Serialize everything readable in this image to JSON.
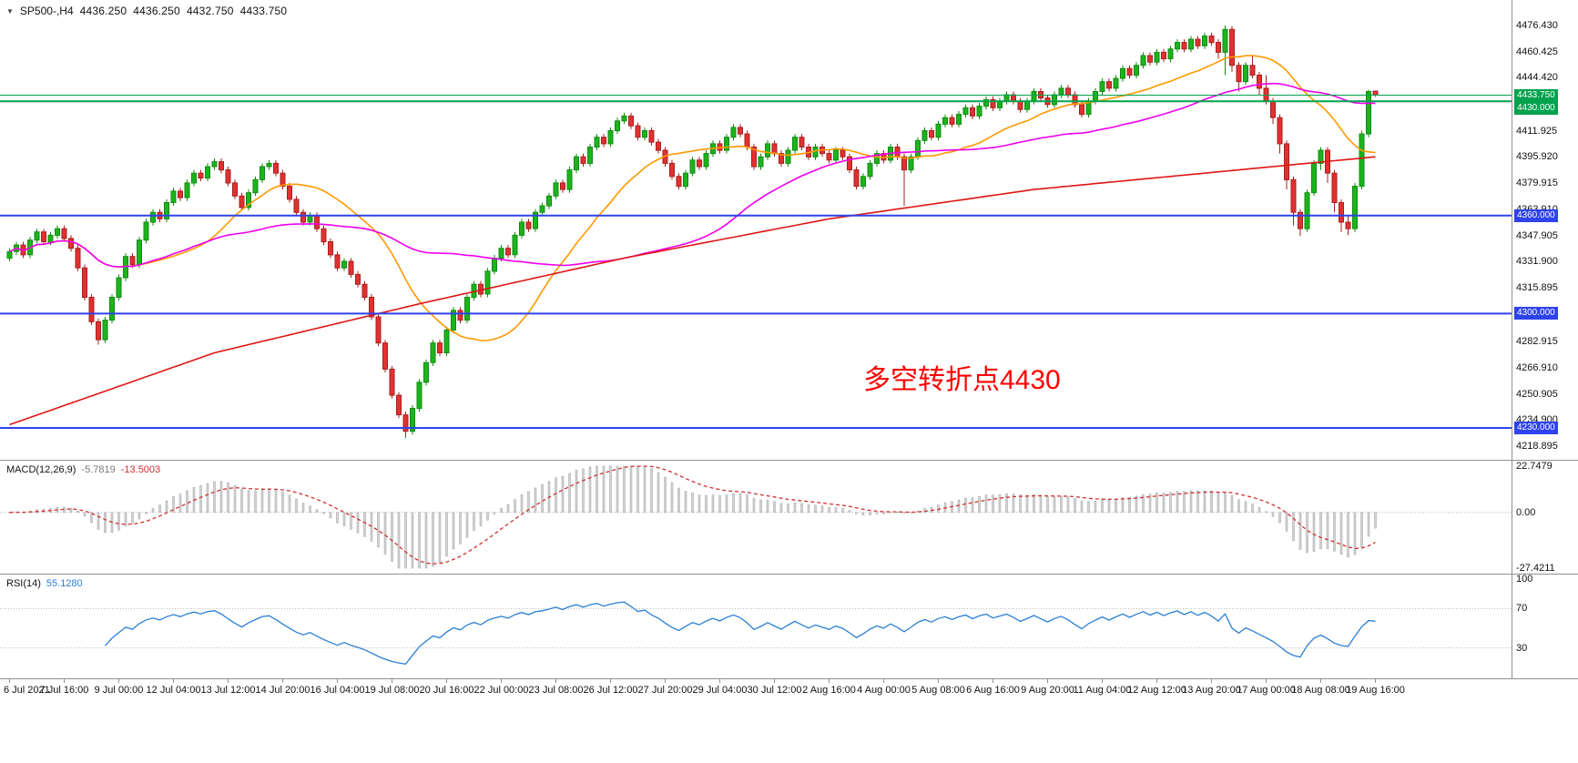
{
  "header": {
    "symbol_period": "SP500-,H4",
    "open": "4436.250",
    "high": "4436.250",
    "low": "4432.750",
    "close": "4433.750"
  },
  "annotation": {
    "text": "多空转折点4430",
    "color": "#ff0000"
  },
  "price_axis": {
    "labels": [
      "4476.430",
      "4460.425",
      "4444.420",
      "4428.415",
      "4411.925",
      "4395.920",
      "4379.915",
      "4363.910",
      "4347.905",
      "4331.900",
      "4315.895",
      "4299.890",
      "4282.915",
      "4266.910",
      "4250.905",
      "4234.900",
      "4218.895"
    ],
    "badges": [
      {
        "text": "4433.750",
        "price": 4433.75,
        "color": "#00a24d"
      },
      {
        "text": "4430.000",
        "price": 4430.0,
        "color": "#00a24d"
      },
      {
        "text": "4360.000",
        "price": 4360.0,
        "color": "#2e43eb"
      },
      {
        "text": "4300.000",
        "price": 4300.0,
        "color": "#2e43eb"
      },
      {
        "text": "4230.000",
        "price": 4230.0,
        "color": "#2e43eb"
      }
    ]
  },
  "hlines": [
    {
      "price": 4433.75,
      "color": "#00a24d",
      "width": 1
    },
    {
      "price": 4430.0,
      "color": "#00a24d",
      "width": 2
    },
    {
      "price": 4360.0,
      "color": "#2e43eb",
      "width": 2
    },
    {
      "price": 4300.0,
      "color": "#2e43eb",
      "width": 2
    },
    {
      "price": 4230.0,
      "color": "#2e43eb",
      "width": 2
    }
  ],
  "colors": {
    "bull": "#1db31d",
    "bull_border": "#0f8c0f",
    "bear": "#e03131",
    "bear_border": "#a81f1f",
    "ma_fast": "#ff9900",
    "ma_mid": "#ee00ee",
    "ma_slow": "#e01515",
    "macd_hist_fill": "#d4d4d4",
    "macd_hist_stroke": "#a0a0a0",
    "macd_signal": "#d03030",
    "rsi": "#2a7fd4",
    "grid": "#b5b5b5",
    "axis_line": "#909090",
    "text": "#111111"
  },
  "chart_data": {
    "type": "candlestick",
    "symbol": "SP500-",
    "timeframe": "H4",
    "title": "SP500-,H4 4436.250 4436.250 4432.750 4433.750",
    "price_range": {
      "min": 4210.5,
      "max": 4492.0
    },
    "x_labels": [
      "6 Jul 2021",
      "7 Jul 16:00",
      "9 Jul 00:00",
      "12 Jul 04:00",
      "13 Jul 12:00",
      "14 Jul 20:00",
      "16 Jul 04:00",
      "19 Jul 08:00",
      "20 Jul 16:00",
      "22 Jul 00:00",
      "23 Jul 08:00",
      "26 Jul 12:00",
      "27 Jul 20:00",
      "29 Jul 04:00",
      "30 Jul 12:00",
      "2 Aug 16:00",
      "4 Aug 00:00",
      "5 Aug 08:00",
      "6 Aug 16:00",
      "9 Aug 20:00",
      "11 Aug 04:00",
      "12 Aug 12:00",
      "13 Aug 20:00",
      "17 Aug 00:00",
      "18 Aug 08:00",
      "19 Aug 16:00"
    ],
    "candles": [
      [
        4334,
        4340,
        4332,
        4338
      ],
      [
        4338,
        4344,
        4336,
        4342
      ],
      [
        4342,
        4344,
        4334,
        4336
      ],
      [
        4336,
        4347,
        4334,
        4345
      ],
      [
        4345,
        4352,
        4343,
        4350
      ],
      [
        4350,
        4352,
        4342,
        4344
      ],
      [
        4344,
        4350,
        4342,
        4348
      ],
      [
        4348,
        4354,
        4346,
        4352
      ],
      [
        4352,
        4354,
        4344,
        4346
      ],
      [
        4346,
        4348,
        4338,
        4340
      ],
      [
        4340,
        4342,
        4326,
        4328
      ],
      [
        4328,
        4330,
        4308,
        4310
      ],
      [
        4310,
        4312,
        4293,
        4295
      ],
      [
        4295,
        4297,
        4281,
        4284
      ],
      [
        4284,
        4298,
        4282,
        4296
      ],
      [
        4296,
        4312,
        4294,
        4310
      ],
      [
        4310,
        4324,
        4308,
        4322
      ],
      [
        4322,
        4337,
        4320,
        4335
      ],
      [
        4335,
        4337,
        4328,
        4330
      ],
      [
        4330,
        4347,
        4328,
        4345
      ],
      [
        4345,
        4358,
        4343,
        4356
      ],
      [
        4356,
        4364,
        4354,
        4362
      ],
      [
        4362,
        4364,
        4356,
        4358
      ],
      [
        4358,
        4370,
        4356,
        4368
      ],
      [
        4368,
        4377,
        4366,
        4375
      ],
      [
        4375,
        4377,
        4369,
        4371
      ],
      [
        4371,
        4382,
        4369,
        4380
      ],
      [
        4380,
        4388,
        4378,
        4386
      ],
      [
        4386,
        4388,
        4381,
        4383
      ],
      [
        4383,
        4392,
        4381,
        4390
      ],
      [
        4390,
        4395,
        4388,
        4393
      ],
      [
        4393,
        4395,
        4386,
        4388
      ],
      [
        4388,
        4390,
        4378,
        4380
      ],
      [
        4380,
        4382,
        4370,
        4372
      ],
      [
        4372,
        4374,
        4363,
        4365
      ],
      [
        4365,
        4376,
        4363,
        4374
      ],
      [
        4374,
        4384,
        4372,
        4382
      ],
      [
        4382,
        4392,
        4380,
        4390
      ],
      [
        4390,
        4394,
        4388,
        4392
      ],
      [
        4392,
        4394,
        4384,
        4386
      ],
      [
        4386,
        4388,
        4376,
        4378
      ],
      [
        4378,
        4380,
        4368,
        4370
      ],
      [
        4370,
        4372,
        4360,
        4362
      ],
      [
        4362,
        4364,
        4354,
        4356
      ],
      [
        4356,
        4362,
        4354,
        4360
      ],
      [
        4360,
        4362,
        4350,
        4352
      ],
      [
        4352,
        4354,
        4342,
        4344
      ],
      [
        4344,
        4346,
        4334,
        4336
      ],
      [
        4336,
        4338,
        4326,
        4328
      ],
      [
        4328,
        4334,
        4326,
        4332
      ],
      [
        4332,
        4334,
        4322,
        4324
      ],
      [
        4324,
        4326,
        4316,
        4318
      ],
      [
        4318,
        4320,
        4308,
        4310
      ],
      [
        4310,
        4312,
        4296,
        4298
      ],
      [
        4298,
        4300,
        4280,
        4282
      ],
      [
        4282,
        4284,
        4264,
        4266
      ],
      [
        4266,
        4268,
        4248,
        4250
      ],
      [
        4250,
        4252,
        4236,
        4238
      ],
      [
        4238,
        4240,
        4224,
        4228
      ],
      [
        4228,
        4244,
        4226,
        4242
      ],
      [
        4242,
        4260,
        4240,
        4258
      ],
      [
        4258,
        4272,
        4256,
        4270
      ],
      [
        4270,
        4284,
        4268,
        4282
      ],
      [
        4282,
        4284,
        4274,
        4276
      ],
      [
        4276,
        4292,
        4274,
        4290
      ],
      [
        4290,
        4304,
        4288,
        4302
      ],
      [
        4302,
        4304,
        4294,
        4296
      ],
      [
        4296,
        4312,
        4294,
        4310
      ],
      [
        4310,
        4320,
        4308,
        4318
      ],
      [
        4318,
        4320,
        4310,
        4312
      ],
      [
        4312,
        4328,
        4310,
        4326
      ],
      [
        4326,
        4336,
        4324,
        4334
      ],
      [
        4334,
        4342,
        4332,
        4340
      ],
      [
        4340,
        4342,
        4334,
        4336
      ],
      [
        4336,
        4350,
        4334,
        4348
      ],
      [
        4348,
        4358,
        4346,
        4356
      ],
      [
        4356,
        4358,
        4350,
        4352
      ],
      [
        4352,
        4364,
        4350,
        4362
      ],
      [
        4362,
        4368,
        4360,
        4366
      ],
      [
        4366,
        4374,
        4364,
        4372
      ],
      [
        4372,
        4382,
        4370,
        4380
      ],
      [
        4380,
        4382,
        4374,
        4376
      ],
      [
        4376,
        4390,
        4374,
        4388
      ],
      [
        4388,
        4398,
        4386,
        4396
      ],
      [
        4396,
        4398,
        4390,
        4392
      ],
      [
        4392,
        4404,
        4390,
        4402
      ],
      [
        4402,
        4410,
        4400,
        4408
      ],
      [
        4408,
        4410,
        4402,
        4404
      ],
      [
        4404,
        4414,
        4402,
        4412
      ],
      [
        4412,
        4420,
        4410,
        4418
      ],
      [
        4418,
        4423,
        4416,
        4421
      ],
      [
        4421,
        4423,
        4413,
        4415
      ],
      [
        4415,
        4417,
        4406,
        4408
      ],
      [
        4408,
        4414,
        4406,
        4412
      ],
      [
        4412,
        4414,
        4403,
        4405
      ],
      [
        4405,
        4407,
        4398,
        4400
      ],
      [
        4400,
        4402,
        4390,
        4392
      ],
      [
        4392,
        4394,
        4382,
        4384
      ],
      [
        4384,
        4386,
        4376,
        4378
      ],
      [
        4378,
        4388,
        4376,
        4386
      ],
      [
        4386,
        4396,
        4384,
        4394
      ],
      [
        4394,
        4396,
        4388,
        4390
      ],
      [
        4390,
        4400,
        4388,
        4398
      ],
      [
        4398,
        4406,
        4396,
        4404
      ],
      [
        4404,
        4406,
        4398,
        4400
      ],
      [
        4400,
        4410,
        4398,
        4408
      ],
      [
        4408,
        4416,
        4406,
        4414
      ],
      [
        4414,
        4416,
        4408,
        4410
      ],
      [
        4410,
        4412,
        4400,
        4402
      ],
      [
        4402,
        4404,
        4388,
        4390
      ],
      [
        4390,
        4398,
        4388,
        4396
      ],
      [
        4396,
        4406,
        4394,
        4404
      ],
      [
        4404,
        4406,
        4396,
        4398
      ],
      [
        4398,
        4400,
        4390,
        4392
      ],
      [
        4392,
        4402,
        4390,
        4400
      ],
      [
        4400,
        4410,
        4398,
        4408
      ],
      [
        4408,
        4410,
        4400,
        4402
      ],
      [
        4402,
        4404,
        4394,
        4396
      ],
      [
        4396,
        4404,
        4394,
        4402
      ],
      [
        4402,
        4404,
        4396,
        4398
      ],
      [
        4398,
        4400,
        4392,
        4394
      ],
      [
        4394,
        4402,
        4392,
        4400
      ],
      [
        4400,
        4402,
        4394,
        4396
      ],
      [
        4396,
        4398,
        4386,
        4388
      ],
      [
        4388,
        4390,
        4376,
        4378
      ],
      [
        4378,
        4386,
        4376,
        4384
      ],
      [
        4384,
        4394,
        4382,
        4392
      ],
      [
        4392,
        4400,
        4390,
        4398
      ],
      [
        4398,
        4400,
        4392,
        4394
      ],
      [
        4394,
        4404,
        4392,
        4402
      ],
      [
        4402,
        4404,
        4394,
        4396
      ],
      [
        4396,
        4398,
        4366,
        4388
      ],
      [
        4388,
        4398,
        4386,
        4396
      ],
      [
        4396,
        4408,
        4394,
        4406
      ],
      [
        4406,
        4414,
        4404,
        4412
      ],
      [
        4412,
        4414,
        4406,
        4408
      ],
      [
        4408,
        4418,
        4406,
        4416
      ],
      [
        4416,
        4422,
        4414,
        4420
      ],
      [
        4420,
        4422,
        4414,
        4416
      ],
      [
        4416,
        4424,
        4414,
        4422
      ],
      [
        4422,
        4428,
        4420,
        4426
      ],
      [
        4426,
        4428,
        4419,
        4421
      ],
      [
        4421,
        4429,
        4419,
        4427
      ],
      [
        4427,
        4433,
        4425,
        4431
      ],
      [
        4431,
        4433,
        4424,
        4426
      ],
      [
        4426,
        4432,
        4424,
        4430
      ],
      [
        4430,
        4436,
        4428,
        4434
      ],
      [
        4434,
        4436,
        4428,
        4430
      ],
      [
        4430,
        4432,
        4423,
        4425
      ],
      [
        4425,
        4432,
        4423,
        4430
      ],
      [
        4430,
        4438,
        4428,
        4436
      ],
      [
        4436,
        4438,
        4430,
        4432
      ],
      [
        4432,
        4434,
        4426,
        4428
      ],
      [
        4428,
        4436,
        4426,
        4434
      ],
      [
        4434,
        4440,
        4432,
        4438
      ],
      [
        4438,
        4440,
        4432,
        4434
      ],
      [
        4434,
        4436,
        4426,
        4428
      ],
      [
        4428,
        4430,
        4420,
        4422
      ],
      [
        4422,
        4432,
        4420,
        4430
      ],
      [
        4430,
        4438,
        4428,
        4436
      ],
      [
        4436,
        4444,
        4434,
        4442
      ],
      [
        4442,
        4444,
        4436,
        4438
      ],
      [
        4438,
        4446,
        4436,
        4444
      ],
      [
        4444,
        4452,
        4442,
        4450
      ],
      [
        4450,
        4452,
        4444,
        4446
      ],
      [
        4446,
        4454,
        4444,
        4452
      ],
      [
        4452,
        4460,
        4450,
        4458
      ],
      [
        4458,
        4460,
        4452,
        4454
      ],
      [
        4454,
        4462,
        4452,
        4460
      ],
      [
        4460,
        4462,
        4454,
        4456
      ],
      [
        4456,
        4464,
        4454,
        4462
      ],
      [
        4462,
        4468,
        4460,
        4466
      ],
      [
        4466,
        4468,
        4460,
        4462
      ],
      [
        4462,
        4470,
        4460,
        4468
      ],
      [
        4468,
        4470,
        4462,
        4464
      ],
      [
        4464,
        4472,
        4462,
        4470
      ],
      [
        4470,
        4472,
        4464,
        4466
      ],
      [
        4466,
        4468,
        4456,
        4460
      ],
      [
        4460,
        4476.4,
        4446,
        4474
      ],
      [
        4474,
        4476,
        4448,
        4452
      ],
      [
        4452,
        4454,
        4436,
        4442
      ],
      [
        4442,
        4454,
        4440,
        4452
      ],
      [
        4452,
        4458,
        4444,
        4446
      ],
      [
        4446,
        4448,
        4434,
        4438
      ],
      [
        4438,
        4446,
        4428,
        4430
      ],
      [
        4430,
        4432,
        4416,
        4420
      ],
      [
        4420,
        4422,
        4398,
        4404
      ],
      [
        4404,
        4406,
        4376,
        4382
      ],
      [
        4382,
        4384,
        4354,
        4362
      ],
      [
        4362,
        4364,
        4347.4,
        4352
      ],
      [
        4352,
        4376,
        4350,
        4374
      ],
      [
        4374,
        4394,
        4372,
        4392
      ],
      [
        4392,
        4402,
        4388,
        4400
      ],
      [
        4400,
        4402,
        4380,
        4386
      ],
      [
        4386,
        4388,
        4362,
        4368
      ],
      [
        4368,
        4370,
        4350,
        4356
      ],
      [
        4356,
        4360,
        4348,
        4352
      ],
      [
        4352,
        4380,
        4350,
        4378
      ],
      [
        4378,
        4412,
        4376,
        4410
      ],
      [
        4410,
        4437,
        4408,
        4436
      ],
      [
        4436.25,
        4436.25,
        4432.75,
        4433.75
      ]
    ],
    "moving_averages": [
      {
        "name": "ma-fast",
        "type": "sma",
        "period": 20,
        "color": "#ff9900"
      },
      {
        "name": "ma-mid",
        "type": "sma",
        "period": 50,
        "color": "#ee00ee"
      },
      {
        "name": "ma-slow",
        "type": "anchored",
        "color": "#e01515",
        "anchors": [
          [
            0,
            4232
          ],
          [
            30,
            4276
          ],
          [
            60,
            4306
          ],
          [
            90,
            4334
          ],
          [
            120,
            4358
          ],
          [
            150,
            4376
          ],
          [
            175,
            4386
          ],
          [
            200,
            4396
          ]
        ]
      }
    ],
    "indicators": {
      "macd": {
        "label": "MACD(12,26,9)",
        "value_main": "-5.7819",
        "value_signal": "-13.5003",
        "fast": 12,
        "slow": 26,
        "signal": 9,
        "axis": [
          "22.7479",
          "0.00",
          "-27.4211"
        ],
        "range": [
          -27.4211,
          22.7479
        ]
      },
      "rsi": {
        "label": "RSI(14)",
        "value": "55.1280",
        "period": 14,
        "axis": [
          "100",
          "70",
          "30"
        ],
        "levels": [
          70,
          30
        ]
      }
    }
  }
}
